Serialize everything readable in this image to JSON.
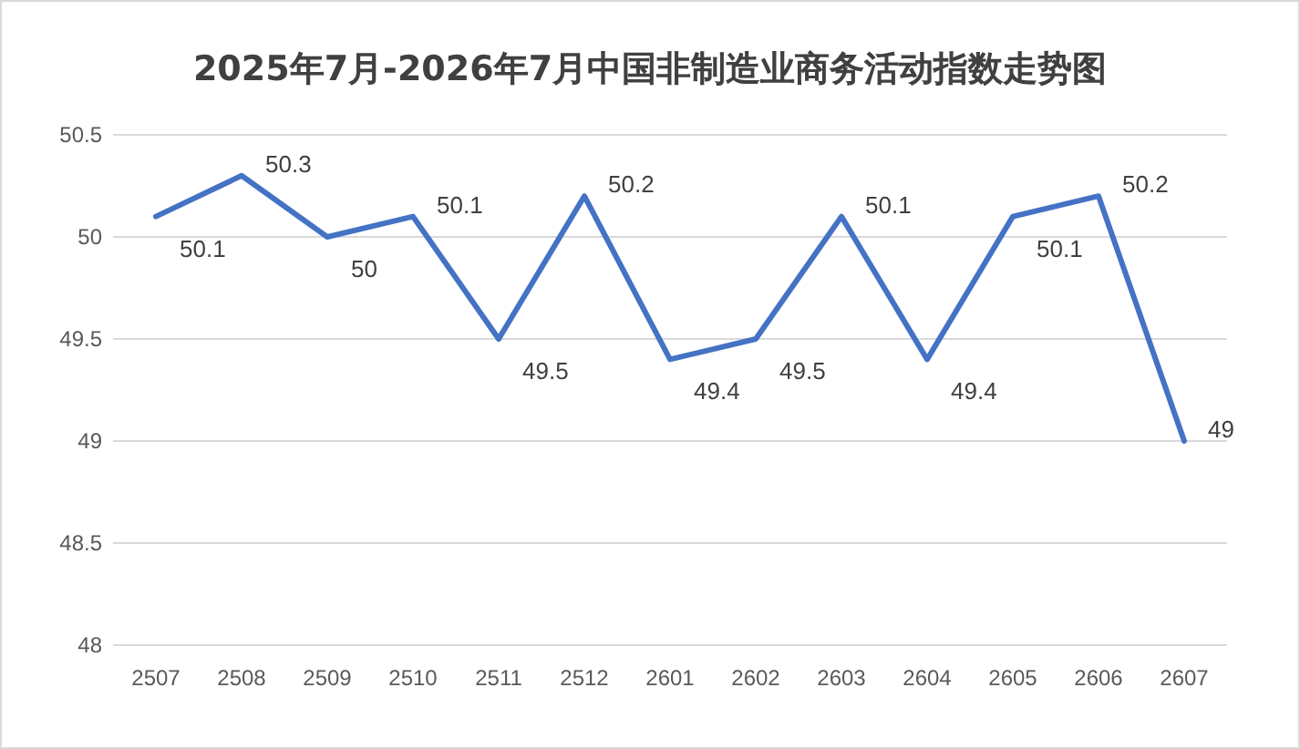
{
  "chart_data": {
    "type": "line",
    "title": "2025年7月-2026年7月中国非制造业商务活动指数走势图",
    "categories": [
      "2507",
      "2508",
      "2509",
      "2510",
      "2511",
      "2512",
      "2601",
      "2602",
      "2603",
      "2604",
      "2605",
      "2606",
      "2607"
    ],
    "values": [
      50.1,
      50.3,
      50,
      50.1,
      49.5,
      50.2,
      49.4,
      49.5,
      50.1,
      49.4,
      50.1,
      50.2,
      49
    ],
    "color": "#4472c4",
    "ylim": [
      48,
      50.5
    ],
    "yticks": [
      48,
      48.5,
      49,
      49.5,
      50,
      50.5
    ],
    "grid": "y",
    "data_labels": true,
    "marker": "none",
    "line_style": "solid"
  }
}
